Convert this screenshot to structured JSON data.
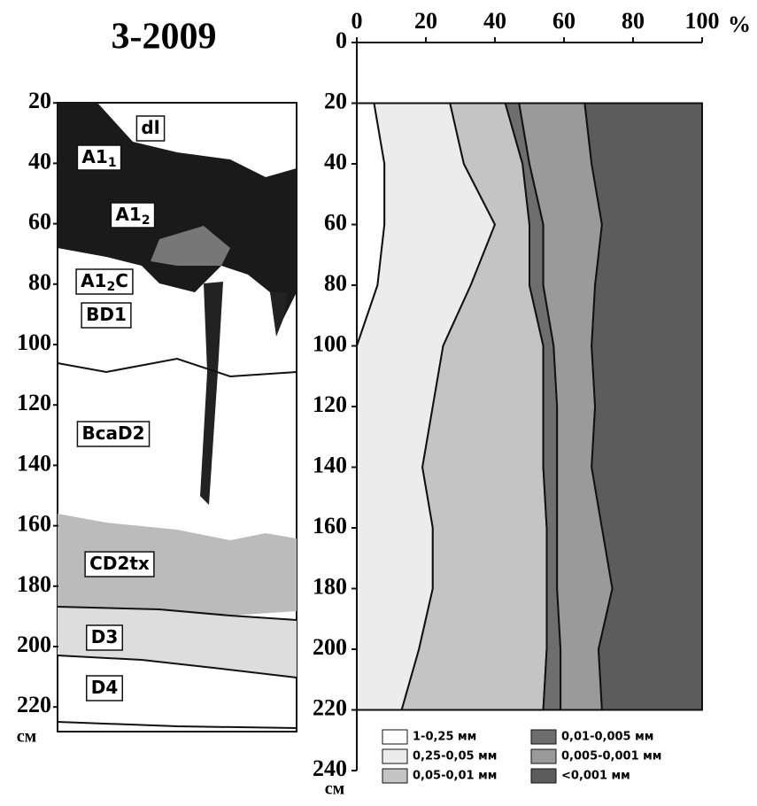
{
  "title": "3-2009",
  "profile": {
    "yticks": [
      20,
      40,
      60,
      80,
      100,
      120,
      140,
      160,
      180,
      200,
      220
    ],
    "unit": "см",
    "horizons": [
      {
        "label": "dl"
      },
      {
        "label": "A1",
        "sub": "1"
      },
      {
        "label": "A1",
        "sub": "2"
      },
      {
        "label": "A1",
        "sub": "2",
        "tail": "C"
      },
      {
        "label": "BD1"
      },
      {
        "label": "BcaD2"
      },
      {
        "label": "CD2tx"
      },
      {
        "label": "D3"
      },
      {
        "label": "D4"
      }
    ]
  },
  "chart_data": {
    "type": "stacked-area-horizontal",
    "x_unit": "%",
    "y_unit": "см",
    "xlim": [
      0,
      100
    ],
    "xticks": [
      0,
      20,
      40,
      60,
      80,
      100
    ],
    "ylim": [
      0,
      240
    ],
    "yticks": [
      0,
      20,
      40,
      60,
      80,
      100,
      120,
      140,
      160,
      180,
      200,
      220,
      240
    ],
    "depths": [
      20,
      40,
      60,
      80,
      100,
      120,
      140,
      160,
      180,
      200,
      220
    ],
    "series": [
      {
        "name": "1-0,25 мм",
        "color": "#ffffff",
        "values": [
          5,
          8,
          8,
          6,
          0,
          0,
          0,
          0,
          0,
          0,
          0
        ]
      },
      {
        "name": "0,25-0,05 мм",
        "color": "#ececec",
        "values": [
          22,
          23,
          32,
          27,
          25,
          22,
          19,
          22,
          22,
          18,
          13
        ]
      },
      {
        "name": "0,05-0,01 мм",
        "color": "#c4c4c4",
        "values": [
          16,
          17,
          10,
          17,
          29,
          32,
          35,
          33,
          33,
          37,
          41
        ]
      },
      {
        "name": "0,01-0,005 мм",
        "color": "#6e6e6e",
        "values": [
          4,
          2,
          4,
          4,
          3,
          4,
          4,
          3,
          3,
          4,
          5
        ]
      },
      {
        "name": "0,005-0,001 мм",
        "color": "#9a9a9a",
        "values": [
          19,
          18,
          17,
          15,
          11,
          11,
          10,
          13,
          16,
          11,
          12
        ]
      },
      {
        "name": "<0,001 мм",
        "color": "#5c5c5c",
        "values": [
          34,
          32,
          29,
          31,
          32,
          31,
          32,
          29,
          26,
          30,
          29
        ]
      }
    ]
  }
}
